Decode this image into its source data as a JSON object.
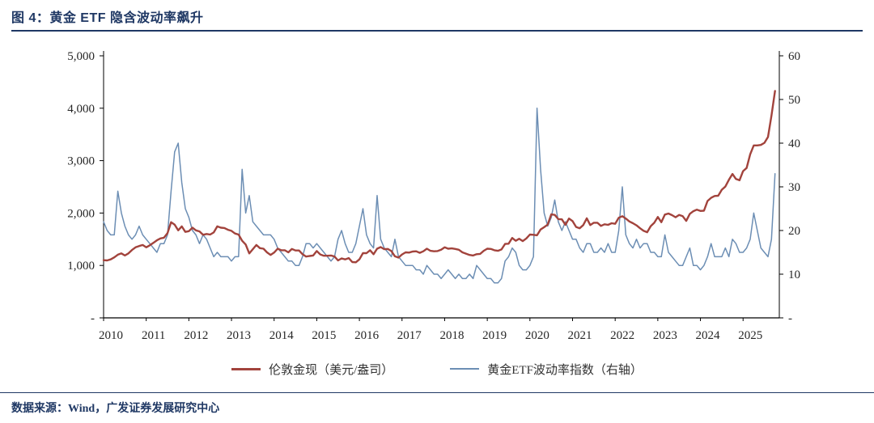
{
  "page": {
    "title": "图 4：黄金 ETF 隐含波动率飙升",
    "source": "数据来源：Wind，广发证券发展研究中心"
  },
  "colors": {
    "navy": "#1F3864",
    "gold_line": "#A2433C",
    "volatility_line": "#6C8EB4",
    "axis_line": "#000000",
    "axis_text": "#262626"
  },
  "chart_data": {
    "type": "line",
    "title": "图 4：黄金 ETF 隐含波动率飙升",
    "grid": false,
    "legend_position": "bottom",
    "x_axis": {
      "unit": "year",
      "start_year": 2010,
      "frequency": "monthly",
      "min": 2010,
      "max": 2025.85,
      "ticks": [
        2010,
        2011,
        2012,
        2013,
        2014,
        2015,
        2016,
        2017,
        2018,
        2019,
        2020,
        2021,
        2022,
        2023,
        2024,
        2025
      ]
    },
    "left_axis": {
      "min": 0,
      "max": 5000,
      "tick_step": 1000,
      "tick_labels": [
        "-",
        "1,000",
        "2,000",
        "3,000",
        "4,000",
        "5,000"
      ]
    },
    "right_axis": {
      "min": 0,
      "max": 60,
      "tick_step": 10,
      "tick_labels": [
        "-",
        "10",
        "20",
        "30",
        "40",
        "50",
        "60"
      ]
    },
    "series": [
      {
        "name": "伦敦金现（美元/盎司）",
        "axis": "left",
        "color": "#A2433C",
        "values": [
          1100,
          1095,
          1115,
          1155,
          1205,
          1230,
          1190,
          1230,
          1295,
          1345,
          1370,
          1390,
          1345,
          1385,
          1430,
          1480,
          1515,
          1530,
          1615,
          1825,
          1780,
          1670,
          1745,
          1640,
          1655,
          1720,
          1670,
          1650,
          1585,
          1600,
          1590,
          1630,
          1745,
          1720,
          1715,
          1680,
          1660,
          1610,
          1590,
          1470,
          1400,
          1230,
          1310,
          1390,
          1330,
          1320,
          1250,
          1200,
          1245,
          1320,
          1290,
          1290,
          1250,
          1315,
          1285,
          1285,
          1215,
          1170,
          1180,
          1190,
          1275,
          1210,
          1185,
          1185,
          1190,
          1170,
          1095,
          1135,
          1115,
          1140,
          1065,
          1060,
          1115,
          1235,
          1235,
          1290,
          1215,
          1320,
          1350,
          1310,
          1315,
          1275,
          1175,
          1150,
          1210,
          1250,
          1245,
          1265,
          1270,
          1240,
          1270,
          1320,
          1280,
          1270,
          1275,
          1300,
          1345,
          1320,
          1325,
          1315,
          1300,
          1250,
          1225,
          1200,
          1190,
          1215,
          1220,
          1280,
          1320,
          1315,
          1290,
          1280,
          1305,
          1410,
          1415,
          1525,
          1470,
          1510,
          1465,
          1515,
          1590,
          1585,
          1575,
          1685,
          1730,
          1780,
          1975,
          1965,
          1885,
          1880,
          1775,
          1895,
          1845,
          1735,
          1710,
          1770,
          1900,
          1770,
          1815,
          1815,
          1755,
          1785,
          1775,
          1805,
          1795,
          1910,
          1940,
          1895,
          1840,
          1805,
          1765,
          1710,
          1660,
          1635,
          1750,
          1815,
          1925,
          1825,
          1970,
          1990,
          1960,
          1920,
          1965,
          1940,
          1850,
          1985,
          2035,
          2065,
          2040,
          2045,
          2230,
          2290,
          2325,
          2330,
          2445,
          2505,
          2635,
          2745,
          2650,
          2625,
          2800,
          2860,
          3120,
          3290,
          3290,
          3300,
          3340,
          3450,
          3860,
          4330
        ]
      },
      {
        "name": "黄金ETF波动率指数（右轴）",
        "axis": "right",
        "color": "#6C8EB4",
        "values": [
          22,
          20,
          19,
          19,
          29,
          24,
          21,
          19,
          18,
          19,
          21,
          19,
          18,
          17,
          16,
          15,
          17,
          17,
          19,
          29,
          38,
          40,
          31,
          25,
          23,
          20,
          19,
          17,
          19,
          18,
          16,
          14,
          15,
          14,
          14,
          14,
          13,
          14,
          14,
          34,
          24,
          28,
          22,
          21,
          20,
          19,
          19,
          19,
          18,
          16,
          15,
          14,
          13,
          13,
          12,
          12,
          14,
          17,
          17,
          16,
          17,
          16,
          15,
          14,
          13,
          14,
          18,
          20,
          17,
          15,
          15,
          17,
          21,
          25,
          19,
          17,
          16,
          28,
          18,
          16,
          15,
          14,
          18,
          14,
          13,
          12,
          12,
          12,
          11,
          11,
          10,
          12,
          11,
          10,
          10,
          9,
          10,
          11,
          10,
          9,
          10,
          9,
          9,
          10,
          9,
          12,
          11,
          10,
          9,
          9,
          8,
          8,
          9,
          13,
          14,
          16,
          15,
          12,
          11,
          11,
          12,
          14,
          48,
          34,
          24,
          21,
          23,
          27,
          22,
          20,
          22,
          20,
          18,
          18,
          16,
          15,
          17,
          17,
          15,
          15,
          16,
          15,
          17,
          15,
          15,
          20,
          30,
          19,
          17,
          16,
          18,
          16,
          17,
          17,
          15,
          15,
          14,
          14,
          19,
          15,
          14,
          13,
          12,
          12,
          14,
          16,
          12,
          12,
          11,
          12,
          14,
          17,
          14,
          14,
          14,
          16,
          14,
          18,
          17,
          15,
          15,
          16,
          18,
          24,
          20,
          16,
          15,
          14,
          18,
          33
        ]
      }
    ]
  }
}
